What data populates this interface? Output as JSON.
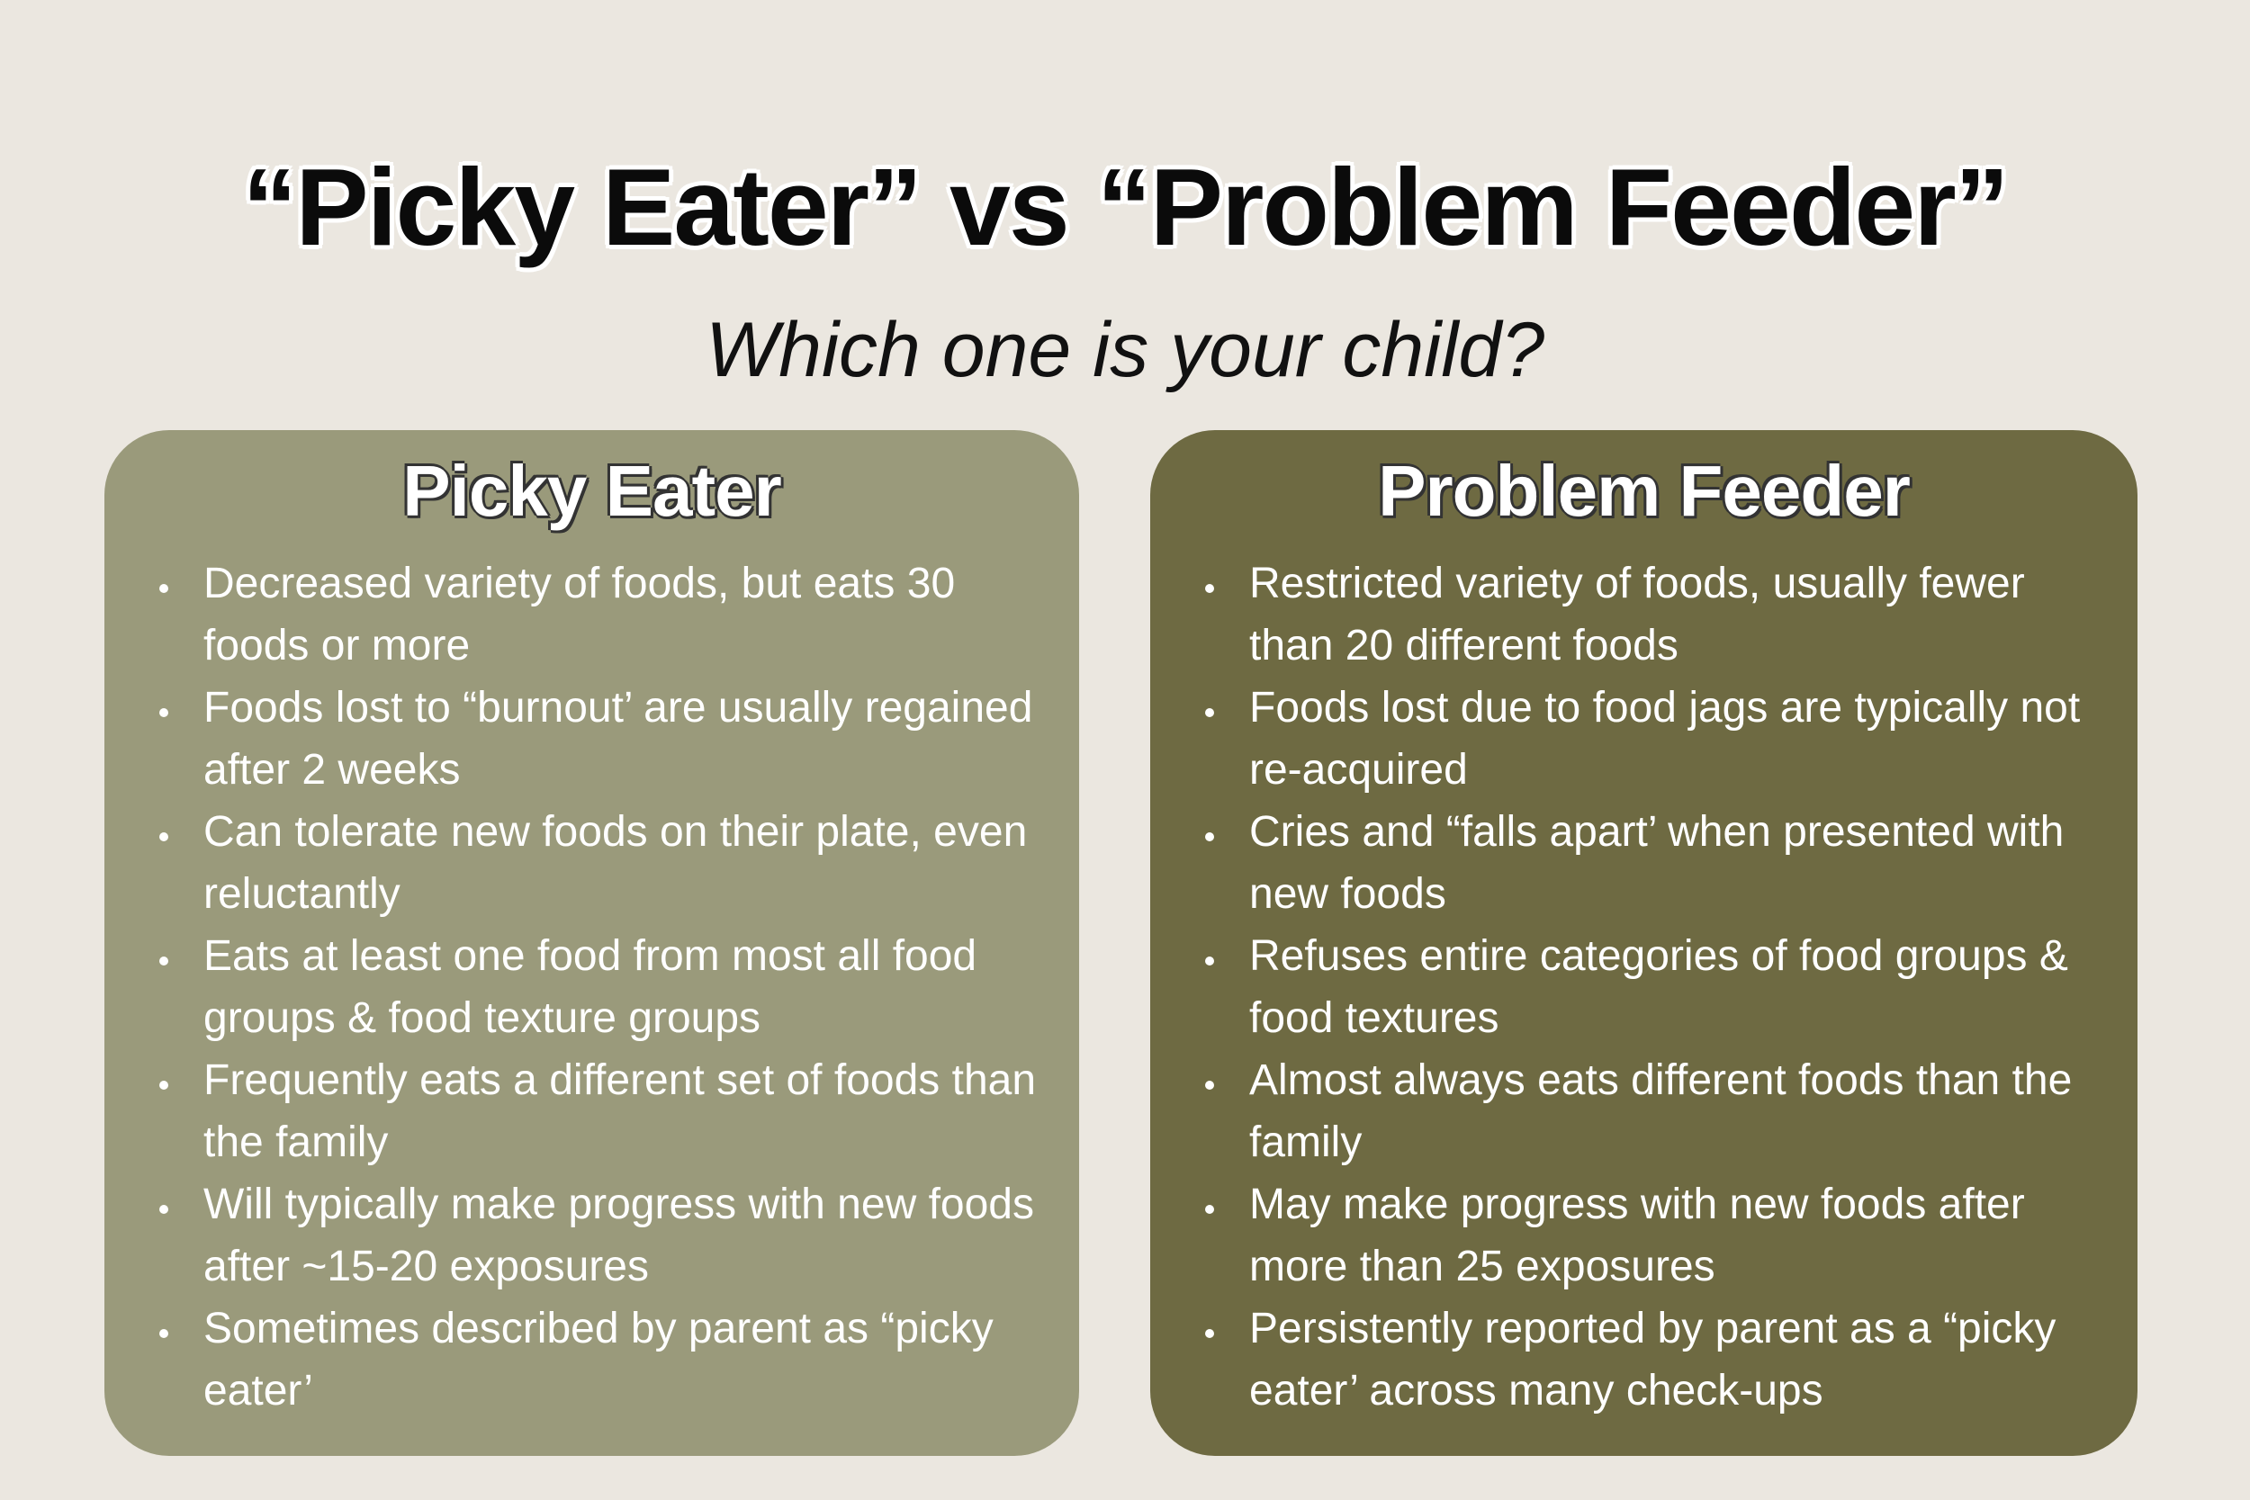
{
  "header": {
    "title": "“Picky Eater” vs “Problem Feeder”",
    "subtitle": "Which one is your child?"
  },
  "columns": [
    {
      "heading": "Picky Eater",
      "items": [
        "Decreased variety of foods, but eats 30 foods or more",
        "Foods lost to “burnout’ are usually regained after 2 weeks",
        "Can tolerate new foods on their plate, even reluctantly",
        "Eats at least one food from most all food groups & food texture groups",
        "Frequently eats a different set of foods than the family",
        "Will typically make progress with new foods after ~15-20 exposures",
        "Sometimes described by parent as “picky eater’"
      ]
    },
    {
      "heading": "Problem Feeder",
      "items": [
        "Restricted variety of foods, usually fewer than 20 different foods",
        "Foods lost due to food jags are typically not re-acquired",
        "Cries and “falls apart’ when presented with new foods",
        "Refuses entire categories of food groups & food textures",
        "Almost always eats different foods than the family",
        "May make progress with new foods after more than 25 exposures",
        "Persistently reported by parent as a “picky eater’ across many check-ups"
      ]
    }
  ]
}
